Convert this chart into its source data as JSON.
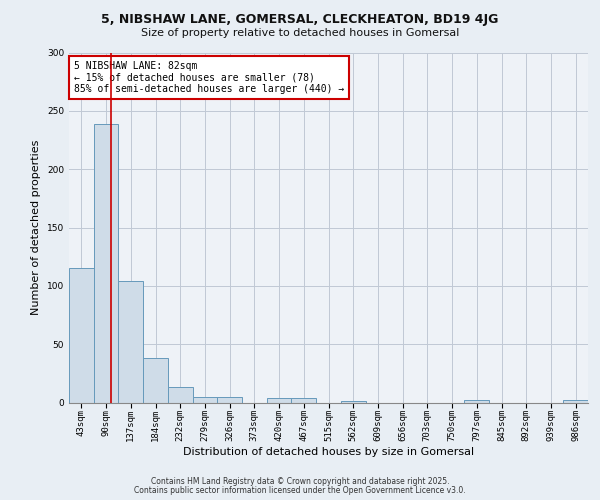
{
  "title_line1": "5, NIBSHAW LANE, GOMERSAL, CLECKHEATON, BD19 4JG",
  "title_line2": "Size of property relative to detached houses in Gomersal",
  "xlabel": "Distribution of detached houses by size in Gomersal",
  "ylabel": "Number of detached properties",
  "footer_line1": "Contains HM Land Registry data © Crown copyright and database right 2025.",
  "footer_line2": "Contains public sector information licensed under the Open Government Licence v3.0.",
  "annotation_line1": "5 NIBSHAW LANE: 82sqm",
  "annotation_line2": "← 15% of detached houses are smaller (78)",
  "annotation_line3": "85% of semi-detached houses are larger (440) →",
  "bar_color": "#cfdce8",
  "bar_edge_color": "#6699bb",
  "vline_color": "#cc0000",
  "annotation_box_edge": "#cc0000",
  "background_color": "#e8eef4",
  "plot_bg_color": "#eef2f7",
  "grid_color": "#c0c8d4",
  "categories": [
    "43sqm",
    "90sqm",
    "137sqm",
    "184sqm",
    "232sqm",
    "279sqm",
    "326sqm",
    "373sqm",
    "420sqm",
    "467sqm",
    "515sqm",
    "562sqm",
    "609sqm",
    "656sqm",
    "703sqm",
    "750sqm",
    "797sqm",
    "845sqm",
    "892sqm",
    "939sqm",
    "986sqm"
  ],
  "values": [
    115,
    239,
    104,
    38,
    13,
    5,
    5,
    0,
    4,
    4,
    0,
    1,
    0,
    0,
    0,
    0,
    2,
    0,
    0,
    0,
    2
  ],
  "ylim": [
    0,
    300
  ],
  "yticks": [
    0,
    50,
    100,
    150,
    200,
    250,
    300
  ],
  "vline_x": 1.18,
  "title_fontsize": 9,
  "subtitle_fontsize": 8,
  "ylabel_fontsize": 8,
  "xlabel_fontsize": 8,
  "tick_fontsize": 6.5,
  "annot_fontsize": 7,
  "footer_fontsize": 5.5
}
